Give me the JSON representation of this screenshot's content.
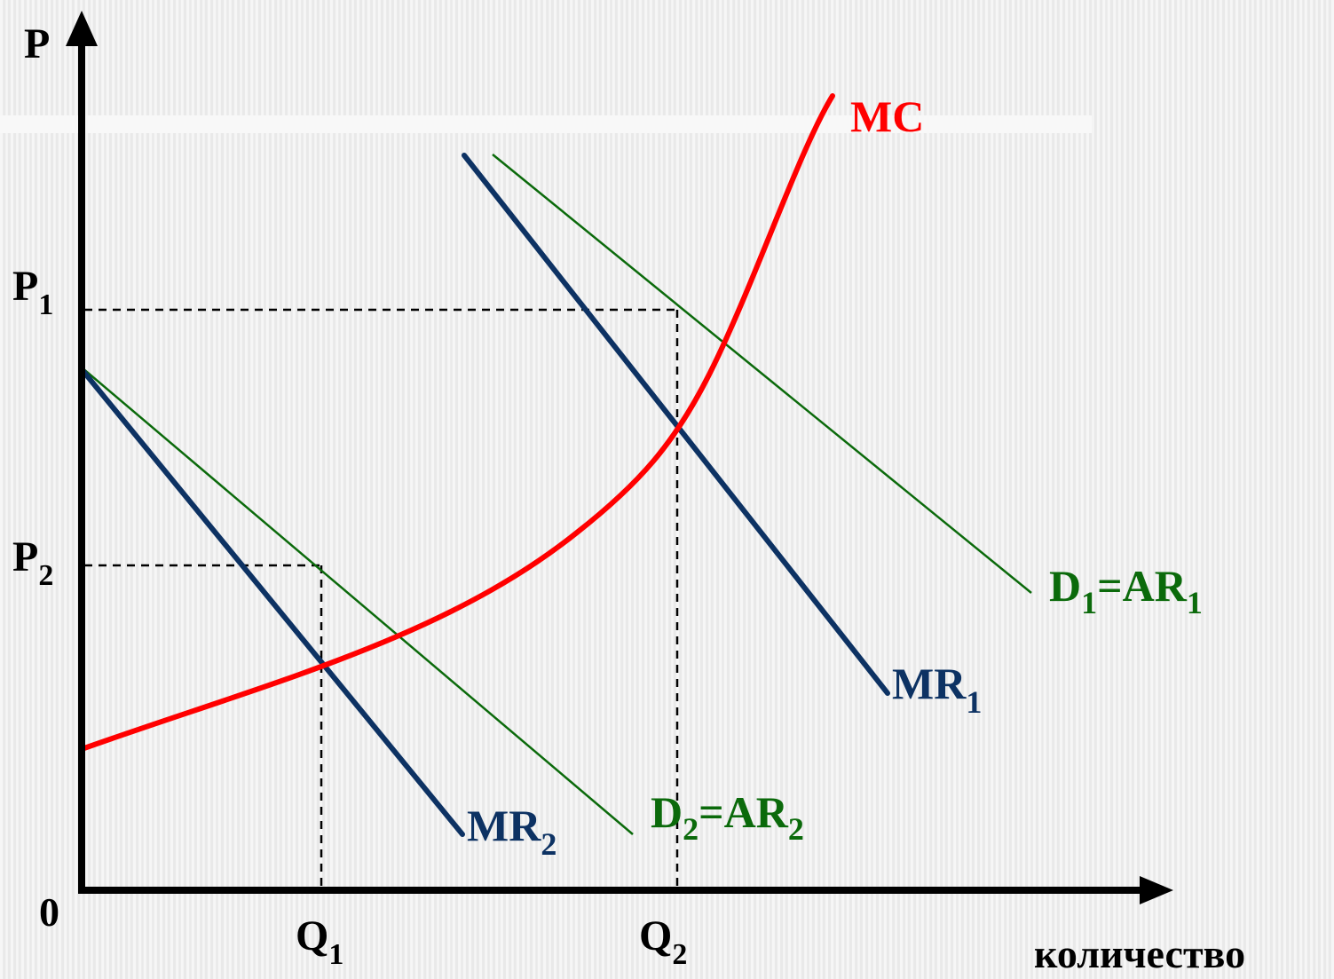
{
  "diagram": {
    "axes": {
      "y_label": "P",
      "origin_label": "0",
      "x_label": "количество",
      "color": "#000000"
    },
    "price_levels": [
      {
        "base": "P",
        "sub": "1"
      },
      {
        "base": "P",
        "sub": "2"
      }
    ],
    "quantity_levels": [
      {
        "base": "Q",
        "sub": "1"
      },
      {
        "base": "Q",
        "sub": "2"
      }
    ],
    "curves": {
      "mc": {
        "label": "MC",
        "color": "#ff0000"
      },
      "mr1": {
        "label_base": "MR",
        "label_sub": "1",
        "color": "#0d3263"
      },
      "mr2": {
        "label_base": "MR",
        "label_sub": "2",
        "color": "#0d3263"
      },
      "d1": {
        "label_base": "D",
        "label_sub": "1",
        "label_mid": "=AR",
        "label_sub2": "1",
        "color": "#0b6a0b"
      },
      "d2": {
        "label_base": "D",
        "label_sub": "2",
        "label_mid": "=AR",
        "label_sub2": "2",
        "color": "#0b6a0b"
      }
    }
  }
}
